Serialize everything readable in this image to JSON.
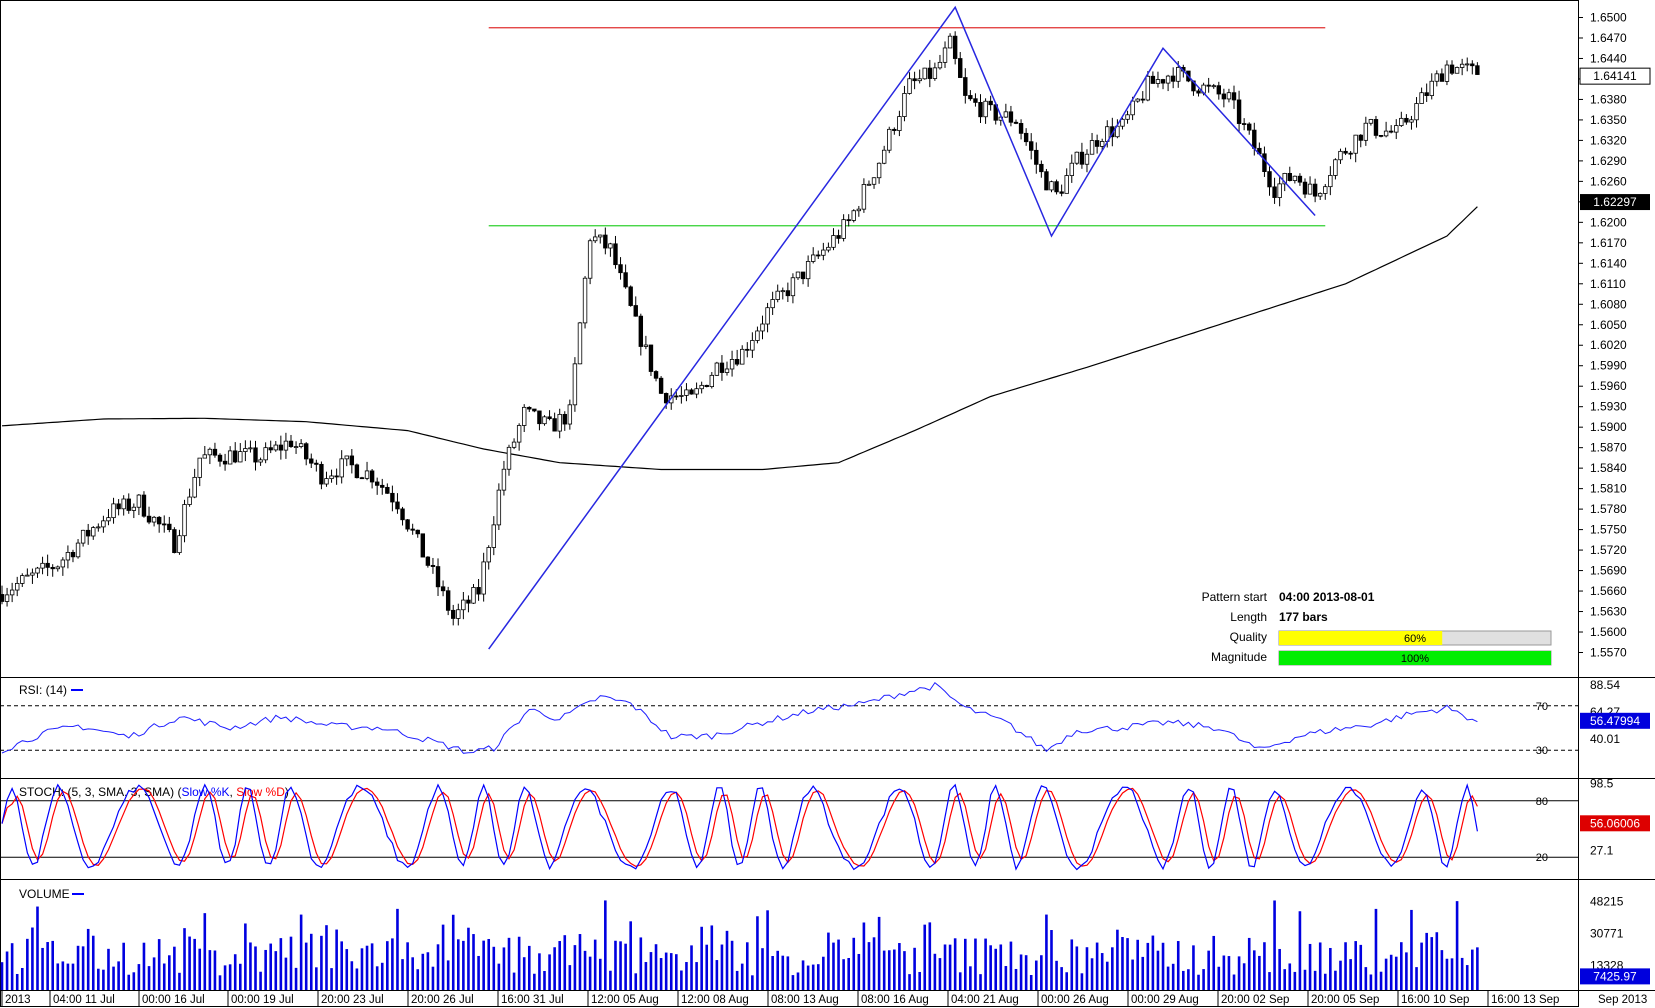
{
  "chart_data": [
    {
      "panel": "price",
      "type": "candlestick",
      "y_ticks": [
        "1.6500",
        "1.6470",
        "1.6440",
        "1.6410",
        "1.6380",
        "1.6350",
        "1.6320",
        "1.6290",
        "1.6260",
        "1.6230",
        "1.6200",
        "1.6170",
        "1.6140",
        "1.6110",
        "1.6080",
        "1.6050",
        "1.6020",
        "1.5990",
        "1.5960",
        "1.5930",
        "1.5900",
        "1.5870",
        "1.5840",
        "1.5810",
        "1.5780",
        "1.5750",
        "1.5720",
        "1.5690",
        "1.5660",
        "1.5630",
        "1.5600",
        "1.5570"
      ],
      "ylim": [
        1.556,
        1.6525
      ],
      "x_labels": [
        "2013",
        "04:00 11 Jul",
        "00:00 16 Jul",
        "00:00 19 Jul",
        "20:00 23 Jul",
        "20:00 26 Jul",
        "16:00 31 Jul",
        "12:00 05 Aug",
        "12:00 08 Aug",
        "08:00 13 Aug",
        "08:00 16 Aug",
        "04:00 21 Aug",
        "00:00 26 Aug",
        "00:00 29 Aug",
        "20:00 02 Sep",
        "20:00 05 Sep",
        "16:00 10 Sep",
        "16:00 13 Sep"
      ],
      "corner_label": "Sep 2013",
      "ohlc_keypoints": [
        [
          0,
          1.5655
        ],
        [
          12,
          1.57
        ],
        [
          22,
          1.5775
        ],
        [
          28,
          1.579
        ],
        [
          35,
          1.573
        ],
        [
          40,
          1.5855
        ],
        [
          47,
          1.586
        ],
        [
          52,
          1.5855
        ],
        [
          58,
          1.588
        ],
        [
          64,
          1.583
        ],
        [
          69,
          1.5845
        ],
        [
          74,
          1.583
        ],
        [
          79,
          1.579
        ],
        [
          85,
          1.57
        ],
        [
          90,
          1.562
        ],
        [
          95,
          1.566
        ],
        [
          100,
          1.584
        ],
        [
          104,
          1.592
        ],
        [
          109,
          1.59
        ],
        [
          113,
          1.592
        ],
        [
          117,
          1.618
        ],
        [
          121,
          1.616
        ],
        [
          126,
          1.605
        ],
        [
          131,
          1.595
        ],
        [
          137,
          1.594
        ],
        [
          142,
          1.599
        ],
        [
          147,
          1.601
        ],
        [
          152,
          1.607
        ],
        [
          157,
          1.611
        ],
        [
          162,
          1.615
        ],
        [
          168,
          1.62
        ],
        [
          174,
          1.629
        ],
        [
          180,
          1.64
        ],
        [
          185,
          1.642
        ],
        [
          188,
          1.646
        ],
        [
          191,
          1.638
        ],
        [
          196,
          1.636
        ],
        [
          201,
          1.635
        ],
        [
          206,
          1.627
        ],
        [
          209,
          1.624
        ],
        [
          213,
          1.629
        ],
        [
          218,
          1.633
        ],
        [
          222,
          1.634
        ],
        [
          227,
          1.64
        ],
        [
          232,
          1.642
        ],
        [
          237,
          1.64
        ],
        [
          243,
          1.638
        ],
        [
          248,
          1.631
        ],
        [
          252,
          1.625
        ],
        [
          256,
          1.627
        ],
        [
          260,
          1.624
        ],
        [
          264,
          1.629
        ],
        [
          270,
          1.634
        ],
        [
          276,
          1.633
        ],
        [
          281,
          1.638
        ],
        [
          286,
          1.643
        ],
        [
          291,
          1.642
        ]
      ],
      "moving_average": [
        [
          0,
          1.5902
        ],
        [
          20,
          1.5912
        ],
        [
          40,
          1.5913
        ],
        [
          60,
          1.5908
        ],
        [
          80,
          1.5895
        ],
        [
          95,
          1.5868
        ],
        [
          110,
          1.5848
        ],
        [
          130,
          1.5838
        ],
        [
          150,
          1.5838
        ],
        [
          165,
          1.5848
        ],
        [
          180,
          1.5895
        ],
        [
          195,
          1.5945
        ],
        [
          215,
          1.599
        ],
        [
          240,
          1.605
        ],
        [
          265,
          1.611
        ],
        [
          285,
          1.618
        ],
        [
          292,
          1.623
        ]
      ],
      "ma_last": "1.62297",
      "last_price": "1.64141",
      "resistance": 1.6485,
      "support": 1.6195,
      "pattern_points": [
        [
          96,
          1.5575
        ],
        [
          188,
          1.6515
        ],
        [
          207,
          1.618
        ],
        [
          229,
          1.6455
        ],
        [
          259,
          1.621
        ]
      ],
      "pattern_info": {
        "start_label": "Pattern start",
        "start_value": "04:00 2013-08-01",
        "length_label": "Length",
        "length_value": "177 bars",
        "quality_label": "Quality",
        "quality_value": 60,
        "quality_text": "60%",
        "magnitude_label": "Magnitude",
        "magnitude_value": 100,
        "magnitude_text": "100%"
      }
    },
    {
      "panel": "rsi",
      "type": "line",
      "title": "RSI: (14)",
      "y_labels": [
        "88.54",
        "64.27",
        "40.01"
      ],
      "levels": [
        "70",
        "30"
      ],
      "ylim": [
        5,
        95
      ],
      "current": "56.47994",
      "keypoints": [
        [
          0,
          30
        ],
        [
          8,
          45
        ],
        [
          15,
          52
        ],
        [
          25,
          42
        ],
        [
          35,
          60
        ],
        [
          45,
          50
        ],
        [
          55,
          60
        ],
        [
          65,
          52
        ],
        [
          75,
          50
        ],
        [
          85,
          38
        ],
        [
          92,
          28
        ],
        [
          97,
          32
        ],
        [
          104,
          67
        ],
        [
          110,
          58
        ],
        [
          118,
          78
        ],
        [
          124,
          72
        ],
        [
          132,
          42
        ],
        [
          140,
          43
        ],
        [
          150,
          55
        ],
        [
          160,
          66
        ],
        [
          170,
          72
        ],
        [
          178,
          82
        ],
        [
          184,
          88
        ],
        [
          190,
          68
        ],
        [
          198,
          55
        ],
        [
          206,
          30
        ],
        [
          212,
          48
        ],
        [
          220,
          50
        ],
        [
          230,
          55
        ],
        [
          240,
          50
        ],
        [
          248,
          30
        ],
        [
          256,
          43
        ],
        [
          262,
          48
        ],
        [
          270,
          53
        ],
        [
          278,
          63
        ],
        [
          285,
          68
        ],
        [
          291,
          56
        ]
      ]
    },
    {
      "panel": "stochastic",
      "type": "line",
      "title": "STOCH: (5, 3, SMA, 3, SMA)",
      "legend": [
        "Slow %K",
        "Slow %D"
      ],
      "y_labels": [
        "98.5",
        "27.1"
      ],
      "levels": [
        "80",
        "20"
      ],
      "ylim": [
        0,
        100
      ],
      "current": "56.06006",
      "series": [
        {
          "name": "Slow %K",
          "color": "#0000ff"
        },
        {
          "name": "Slow %D",
          "color": "#ff0000"
        }
      ]
    },
    {
      "panel": "volume",
      "type": "bar",
      "title": "VOLUME",
      "y_labels": [
        "48215",
        "30771",
        "13328"
      ],
      "ylim": [
        0,
        60000
      ],
      "current": "7425.97"
    }
  ],
  "colors": {
    "candle_up": "#ffffff",
    "candle_down": "#000000",
    "pattern": "#2828e0",
    "resistance": "#e03030",
    "support": "#30d030",
    "ma": "#000000",
    "quality": "#ffff00",
    "magnitude": "#00ee00",
    "volume": "#0000e0"
  }
}
